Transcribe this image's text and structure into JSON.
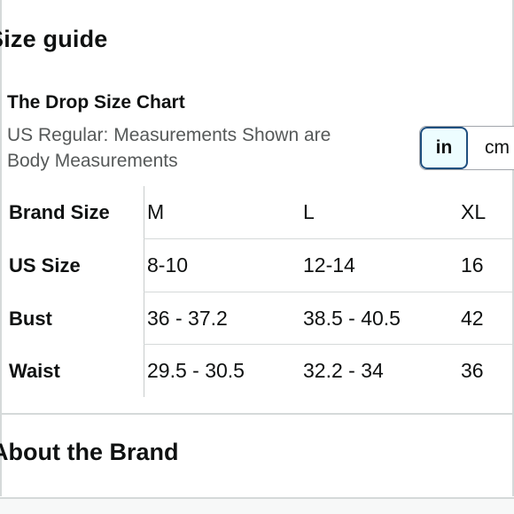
{
  "header": {
    "title": "Size guide"
  },
  "chart": {
    "title": "The Drop Size Chart",
    "subtitle": "US Regular: Measurements Shown are\nBody Measurements"
  },
  "units": {
    "options": [
      "in",
      "cm"
    ],
    "selected": "in"
  },
  "size_table": {
    "columns": [
      "M",
      "L",
      "XL"
    ],
    "rows": [
      {
        "label": "Brand Size",
        "values": [
          "M",
          "L",
          "XL"
        ]
      },
      {
        "label": "US Size",
        "values": [
          "8-10",
          "12-14",
          "16"
        ]
      },
      {
        "label": "Bust",
        "values": [
          "36 - 37.2",
          "38.5 - 40.5",
          "42"
        ]
      },
      {
        "label": "Waist",
        "values": [
          "29.5 - 30.5",
          "32.2 - 34",
          "36"
        ]
      }
    ]
  },
  "about": {
    "title": "About the Brand"
  },
  "colors": {
    "text": "#0f1111",
    "muted": "#565959",
    "accent_border": "#1f4f7f",
    "accent_bg": "#edfdff",
    "divider": "#d5d9d9"
  }
}
